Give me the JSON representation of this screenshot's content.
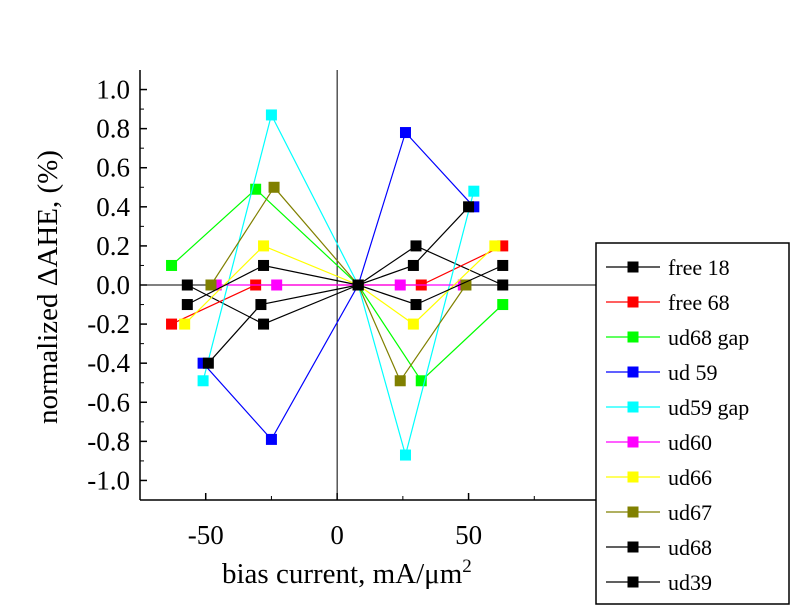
{
  "chart_data": {
    "type": "line",
    "xlabel_main": "bias current, mA/",
    "xlabel_mu": "μm",
    "xlabel_sup": "2",
    "ylabel": "normalized ΔAHE, (%)",
    "xlim": [
      -75,
      100
    ],
    "ylim": [
      -1.1,
      1.1
    ],
    "xticks": [
      -50,
      0,
      50
    ],
    "yticks": [
      1.0,
      0.8,
      0.6,
      0.4,
      0.2,
      0.0,
      -0.2,
      -0.4,
      -0.6,
      -0.8,
      -1.0
    ],
    "ytick_labels": [
      "1.0",
      "0.8",
      "0.6",
      "0.4",
      "0.2",
      "0.0",
      "-0.2",
      "-0.4",
      "-0.6",
      "-0.8",
      "-1.0"
    ],
    "xtick_labels": [
      "-50",
      "0",
      "50"
    ],
    "grid": false,
    "legend_position": "right",
    "series": [
      {
        "name": "free 18",
        "color": "#000000",
        "points": [
          [
            -57,
            0.0
          ],
          [
            -28,
            -0.2
          ],
          [
            8,
            0.0
          ],
          [
            30,
            0.2
          ],
          [
            63,
            0.0
          ]
        ]
      },
      {
        "name": "free 68",
        "color": "#ff0000",
        "points": [
          [
            -63,
            -0.2
          ],
          [
            -31,
            0.0
          ],
          [
            8,
            0.0
          ],
          [
            32,
            0.0
          ],
          [
            63,
            0.2
          ]
        ]
      },
      {
        "name": "ud68 gap",
        "color": "#00ff00",
        "points": [
          [
            -63,
            0.1
          ],
          [
            -31,
            0.49
          ],
          [
            8,
            0.0
          ],
          [
            32,
            -0.49
          ],
          [
            63,
            -0.1
          ]
        ]
      },
      {
        "name": "ud 59",
        "color": "#0000ff",
        "points": [
          [
            -51,
            -0.4
          ],
          [
            -25,
            -0.79
          ],
          [
            8,
            0.0
          ],
          [
            26,
            0.78
          ],
          [
            52,
            0.4
          ]
        ]
      },
      {
        "name": "ud59 gap",
        "color": "#00ffff",
        "points": [
          [
            -51,
            -0.49
          ],
          [
            -25,
            0.87
          ],
          [
            8,
            0.0
          ],
          [
            26,
            -0.87
          ],
          [
            52,
            0.48
          ]
        ]
      },
      {
        "name": "ud60",
        "color": "#ff00ff",
        "points": [
          [
            -46,
            0.0
          ],
          [
            -23,
            0.0
          ],
          [
            8,
            0.0
          ],
          [
            24,
            0.0
          ],
          [
            48,
            0.0
          ]
        ]
      },
      {
        "name": "ud66",
        "color": "#ffff00",
        "points": [
          [
            -58,
            -0.2
          ],
          [
            -28,
            0.2
          ],
          [
            8,
            0.0
          ],
          [
            29,
            -0.2
          ],
          [
            60,
            0.2
          ]
        ]
      },
      {
        "name": "ud67",
        "color": "#808000",
        "points": [
          [
            -48,
            0.0
          ],
          [
            -24,
            0.5
          ],
          [
            8,
            0.0
          ],
          [
            24,
            -0.49
          ],
          [
            49,
            0.0
          ]
        ]
      },
      {
        "name": "ud68",
        "color": "#000000",
        "points": [
          [
            -57,
            -0.1
          ],
          [
            -28,
            0.1
          ],
          [
            8,
            0.0
          ],
          [
            30,
            -0.1
          ],
          [
            63,
            0.1
          ]
        ]
      },
      {
        "name": "ud39",
        "color": "#000000",
        "points": [
          [
            -49,
            -0.4
          ],
          [
            -29,
            -0.1
          ],
          [
            8,
            0.0
          ],
          [
            29,
            0.1
          ],
          [
            50,
            0.4
          ]
        ]
      }
    ]
  }
}
